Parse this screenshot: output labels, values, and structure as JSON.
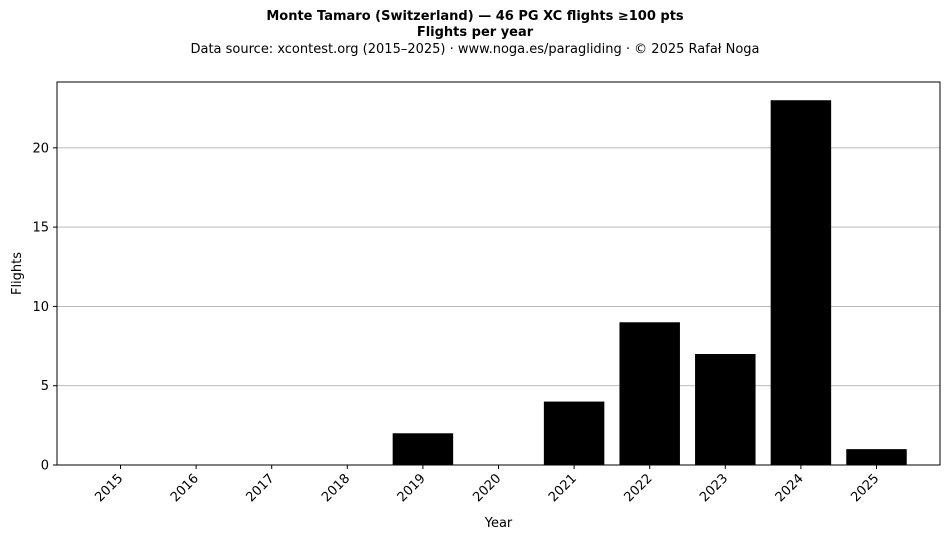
{
  "chart_data": {
    "type": "bar",
    "title": "Monte Tamaro (Switzerland)  —  46 PG XC flights ≥100 pts",
    "subtitle": "Flights per year",
    "caption": "Data source: xcontest.org (2015–2025)  ·  www.noga.es/paragliding  ·  © 2025 Rafał Noga",
    "xlabel": "Year",
    "ylabel": "Flights",
    "categories": [
      "2015",
      "2016",
      "2017",
      "2018",
      "2019",
      "2020",
      "2021",
      "2022",
      "2023",
      "2024",
      "2025"
    ],
    "values": [
      0,
      0,
      0,
      0,
      2,
      0,
      4,
      9,
      7,
      23,
      1
    ],
    "ylim": [
      0,
      24.15
    ],
    "yticks": [
      0,
      5,
      10,
      15,
      20
    ],
    "grid": "horizontal",
    "bar_color": "#000000"
  }
}
